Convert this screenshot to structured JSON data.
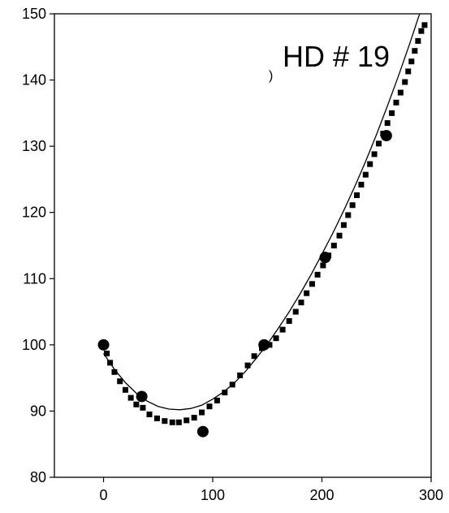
{
  "chart_data": {
    "type": "scatter",
    "title": "",
    "xlabel": "",
    "ylabel": "",
    "xlim": [
      -45,
      300
    ],
    "ylim": [
      80,
      150
    ],
    "grid": false,
    "x_ticks": [
      0,
      100,
      200,
      300
    ],
    "y_ticks": [
      80,
      90,
      100,
      110,
      120,
      130,
      140,
      150
    ],
    "annotation": "HD # 19",
    "series": [
      {
        "marker": "circle",
        "points": [
          [
            0,
            100
          ],
          [
            35,
            92.2
          ],
          [
            91,
            86.9
          ],
          [
            147,
            100
          ],
          [
            203,
            113.2
          ],
          [
            259,
            131.6
          ]
        ]
      },
      {
        "marker": "square",
        "points": [
          [
            3,
            98.7
          ],
          [
            6,
            97.3
          ],
          [
            10,
            95.9
          ],
          [
            15,
            94.5
          ],
          [
            20,
            93.2
          ],
          [
            25,
            92.0
          ],
          [
            30,
            91.0
          ],
          [
            36,
            90.5
          ],
          [
            42,
            89.5
          ],
          [
            49,
            88.9
          ],
          [
            56,
            88.5
          ],
          [
            63,
            88.3
          ],
          [
            69,
            88.3
          ],
          [
            76,
            88.6
          ],
          [
            83,
            89.0
          ],
          [
            90,
            89.8
          ],
          [
            97,
            90.7
          ],
          [
            104,
            91.6
          ],
          [
            111,
            92.8
          ],
          [
            118,
            94.0
          ],
          [
            125,
            95.4
          ],
          [
            132,
            96.9
          ],
          [
            138,
            98.3
          ],
          [
            145,
            99.5
          ],
          [
            152,
            100.0
          ],
          [
            158,
            101.0
          ],
          [
            164,
            102.3
          ],
          [
            170,
            103.6
          ],
          [
            176,
            105.0
          ],
          [
            181,
            106.4
          ],
          [
            186,
            107.8
          ],
          [
            191,
            109.2
          ],
          [
            196,
            110.6
          ],
          [
            201,
            112.0
          ],
          [
            206,
            113.5
          ],
          [
            211,
            115.0
          ],
          [
            216,
            116.5
          ],
          [
            220,
            118.1
          ],
          [
            224,
            119.6
          ],
          [
            228,
            121.1
          ],
          [
            232,
            122.6
          ],
          [
            236,
            124.2
          ],
          [
            240,
            125.7
          ],
          [
            244,
            127.3
          ],
          [
            248,
            128.8
          ],
          [
            252,
            130.4
          ],
          [
            256,
            131.9
          ],
          [
            260,
            133.5
          ],
          [
            264,
            135.0
          ],
          [
            268,
            136.6
          ],
          [
            272,
            138.1
          ],
          [
            276,
            139.7
          ],
          [
            279,
            141.3
          ],
          [
            282,
            142.8
          ],
          [
            285,
            144.4
          ],
          [
            288,
            145.9
          ],
          [
            291,
            147.4
          ],
          [
            294,
            148.3
          ]
        ]
      },
      {
        "marker": "line",
        "points": [
          [
            0,
            98.7
          ],
          [
            10,
            96.3
          ],
          [
            20,
            94.3
          ],
          [
            30,
            92.7
          ],
          [
            40,
            91.5
          ],
          [
            50,
            90.7
          ],
          [
            60,
            90.3
          ],
          [
            70,
            90.2
          ],
          [
            80,
            90.4
          ],
          [
            90,
            90.9
          ],
          [
            100,
            91.8
          ],
          [
            110,
            92.9
          ],
          [
            120,
            94.3
          ],
          [
            130,
            96.0
          ],
          [
            140,
            98.0
          ],
          [
            150,
            100.1
          ],
          [
            160,
            102.5
          ],
          [
            170,
            105.0
          ],
          [
            180,
            107.7
          ],
          [
            190,
            110.6
          ],
          [
            200,
            113.7
          ],
          [
            210,
            116.9
          ],
          [
            220,
            120.3
          ],
          [
            230,
            123.9
          ],
          [
            240,
            127.7
          ],
          [
            250,
            131.8
          ],
          [
            260,
            136.1
          ],
          [
            270,
            140.6
          ],
          [
            280,
            145.3
          ],
          [
            288,
            149.3
          ],
          [
            290,
            150.2
          ]
        ]
      }
    ]
  }
}
